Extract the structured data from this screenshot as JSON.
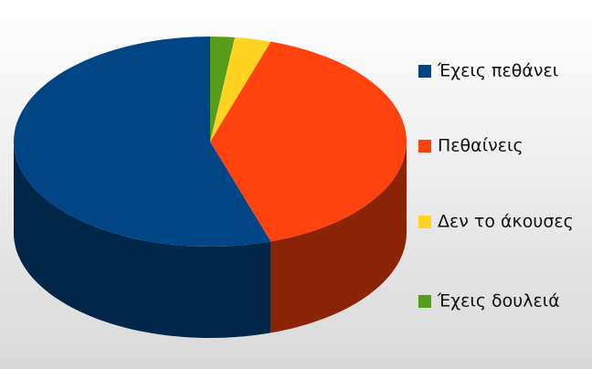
{
  "chart_data": {
    "type": "pie",
    "three_d": true,
    "categories": [
      "Έχεις πεθάνει",
      "Πεθαίνεις",
      "Δεν το άκουσες",
      "Έχεις δουλειά"
    ],
    "values": [
      55,
      40,
      3,
      2
    ],
    "colors": [
      "#004586",
      "#ff420e",
      "#ffd320",
      "#579d1c"
    ],
    "legend": "right"
  }
}
